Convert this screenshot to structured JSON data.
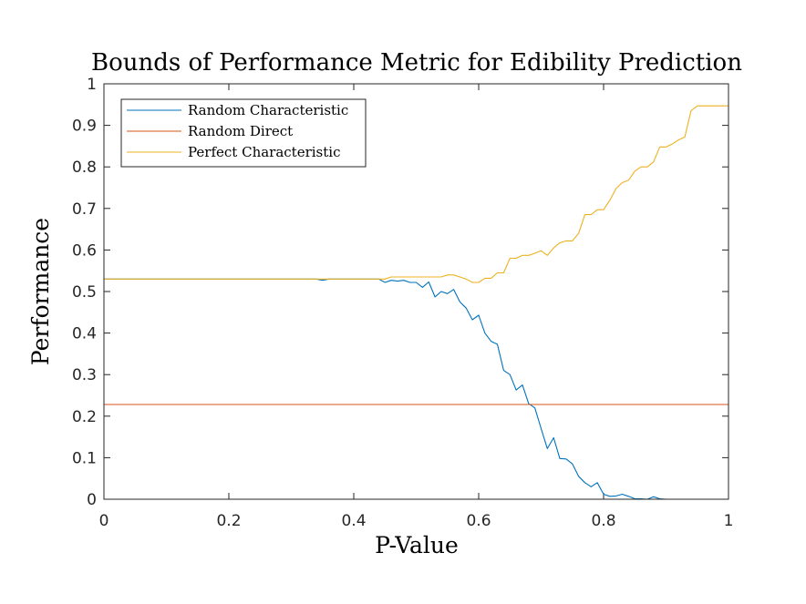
{
  "chart_data": {
    "type": "line",
    "title": "Bounds of Performance Metric for Edibility Prediction",
    "xlabel": "P-Value",
    "ylabel": "Performance",
    "xlim": [
      0,
      1
    ],
    "ylim": [
      0,
      1
    ],
    "xticks": [
      0,
      0.2,
      0.4,
      0.6,
      0.8,
      1
    ],
    "xtick_labels": [
      "0",
      "0.2",
      "0.4",
      "0.6",
      "0.8",
      "1"
    ],
    "yticks": [
      0,
      0.1,
      0.2,
      0.3,
      0.4,
      0.5,
      0.6,
      0.7,
      0.8,
      0.9,
      1
    ],
    "ytick_labels": [
      "0",
      "0.1",
      "0.2",
      "0.3",
      "0.4",
      "0.5",
      "0.6",
      "0.7",
      "0.8",
      "0.9",
      "1"
    ],
    "grid": false,
    "legend_position": "top-left",
    "series": [
      {
        "name": "Random Characteristic",
        "color": "#0072BD",
        "x": [
          0,
          0.34,
          0.35,
          0.36,
          0.44,
          0.45,
          0.46,
          0.47,
          0.48,
          0.49,
          0.5,
          0.51,
          0.52,
          0.53,
          0.54,
          0.55,
          0.56,
          0.57,
          0.58,
          0.59,
          0.6,
          0.61,
          0.62,
          0.63,
          0.64,
          0.65,
          0.66,
          0.67,
          0.68,
          0.69,
          0.7,
          0.71,
          0.72,
          0.73,
          0.74,
          0.75,
          0.76,
          0.77,
          0.78,
          0.79,
          0.8,
          0.81,
          0.82,
          0.83,
          0.84,
          0.85,
          0.86,
          0.87,
          0.88,
          0.89,
          0.9,
          1.0
        ],
        "y": [
          0.53,
          0.53,
          0.527,
          0.53,
          0.53,
          0.522,
          0.527,
          0.525,
          0.527,
          0.522,
          0.522,
          0.51,
          0.523,
          0.487,
          0.5,
          0.495,
          0.505,
          0.475,
          0.46,
          0.432,
          0.443,
          0.4,
          0.38,
          0.373,
          0.31,
          0.3,
          0.263,
          0.275,
          0.23,
          0.22,
          0.17,
          0.122,
          0.148,
          0.098,
          0.097,
          0.085,
          0.055,
          0.04,
          0.03,
          0.04,
          0.012,
          0.007,
          0.008,
          0.012,
          0.007,
          0.001,
          0.001,
          0.0,
          0.006,
          0.001,
          0.0,
          0.0
        ]
      },
      {
        "name": "Random Direct",
        "color": "#D95319",
        "x": [
          0,
          1
        ],
        "y": [
          0.228,
          0.228
        ]
      },
      {
        "name": "Perfect Characteristic",
        "color": "#EDB120",
        "x": [
          0,
          0.45,
          0.46,
          0.53,
          0.54,
          0.55,
          0.56,
          0.57,
          0.58,
          0.59,
          0.6,
          0.61,
          0.62,
          0.63,
          0.64,
          0.65,
          0.66,
          0.67,
          0.68,
          0.69,
          0.7,
          0.71,
          0.72,
          0.73,
          0.74,
          0.75,
          0.76,
          0.77,
          0.78,
          0.79,
          0.8,
          0.81,
          0.82,
          0.83,
          0.84,
          0.85,
          0.86,
          0.87,
          0.88,
          0.89,
          0.9,
          0.91,
          0.92,
          0.93,
          0.94,
          0.95,
          1.0
        ],
        "y": [
          0.53,
          0.53,
          0.535,
          0.535,
          0.535,
          0.54,
          0.54,
          0.535,
          0.53,
          0.522,
          0.522,
          0.532,
          0.532,
          0.545,
          0.545,
          0.58,
          0.58,
          0.587,
          0.587,
          0.592,
          0.598,
          0.587,
          0.605,
          0.617,
          0.622,
          0.622,
          0.64,
          0.685,
          0.685,
          0.697,
          0.697,
          0.72,
          0.748,
          0.762,
          0.768,
          0.79,
          0.8,
          0.8,
          0.812,
          0.848,
          0.848,
          0.855,
          0.865,
          0.872,
          0.935,
          0.947,
          0.947
        ]
      }
    ]
  }
}
